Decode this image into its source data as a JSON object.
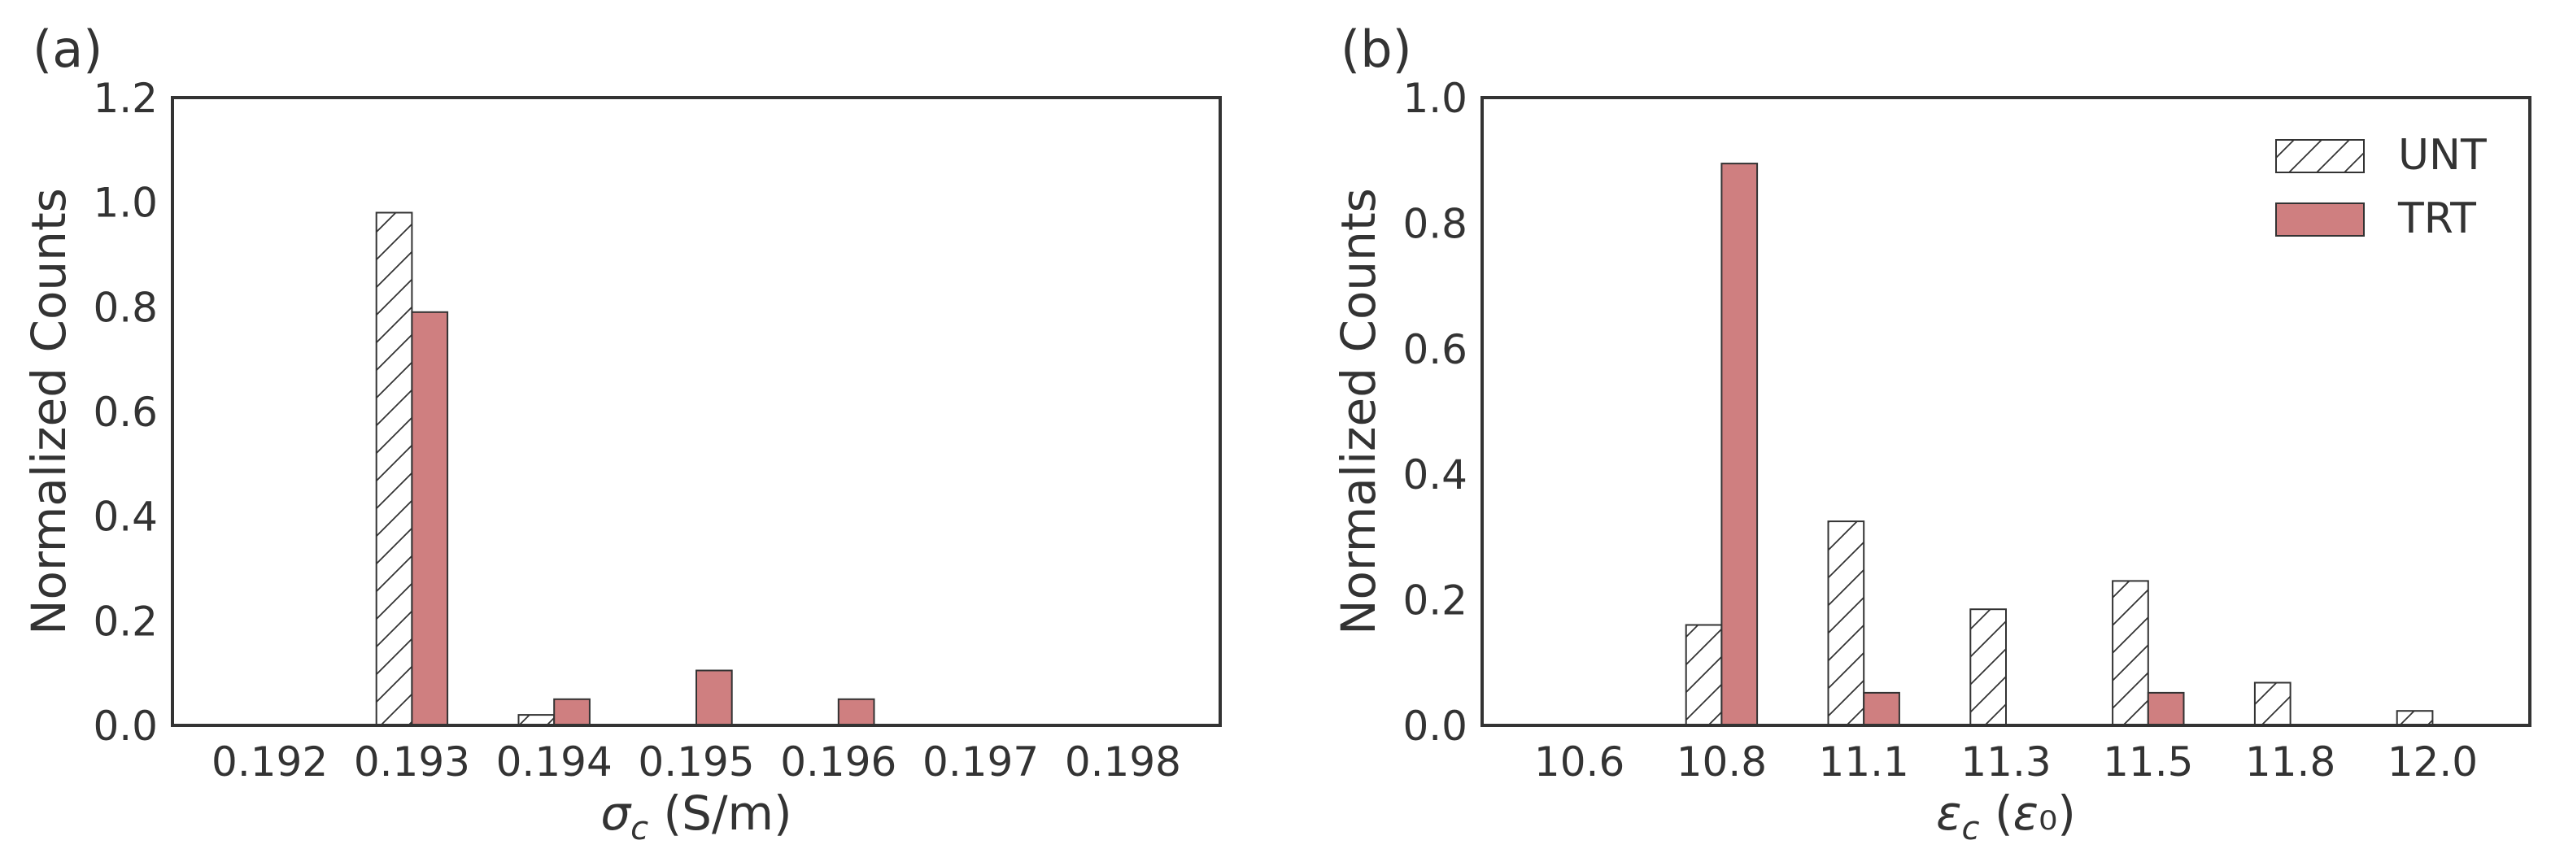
{
  "chart_data": [
    {
      "type": "bar",
      "panel_label": "(a)",
      "xlabel": "σ_c (S/m)",
      "ylabel": "Normalized Counts",
      "categories": [
        "0.192",
        "0.193",
        "0.194",
        "0.195",
        "0.196",
        "0.197",
        "0.198"
      ],
      "series": [
        {
          "name": "UNT",
          "values": [
            0,
            0.98,
            0.02,
            0,
            0,
            0,
            0
          ]
        },
        {
          "name": "TRT",
          "values": [
            0,
            0.79,
            0.05,
            0.105,
            0.05,
            0,
            0
          ]
        }
      ],
      "ylim": [
        0,
        1.2
      ],
      "yticks": [
        "0.0",
        "0.2",
        "0.4",
        "0.6",
        "0.8",
        "1.0",
        "1.2"
      ],
      "grid": false,
      "legend": "none"
    },
    {
      "type": "bar",
      "panel_label": "(b)",
      "xlabel": "ε_c (ε₀)",
      "ylabel": "Normalized Counts",
      "categories": [
        "10.6",
        "10.8",
        "11.1",
        "11.3",
        "11.5",
        "11.8",
        "12.0"
      ],
      "series": [
        {
          "name": "UNT",
          "values": [
            0,
            0.16,
            0.325,
            0.185,
            0.23,
            0.068,
            0.023
          ]
        },
        {
          "name": "TRT",
          "values": [
            0,
            0.895,
            0.052,
            0,
            0.052,
            0,
            0
          ]
        }
      ],
      "ylim": [
        0,
        1.0
      ],
      "yticks": [
        "0.0",
        "0.2",
        "0.4",
        "0.6",
        "0.8",
        "1.0"
      ],
      "grid": false,
      "legend": "top-right"
    }
  ],
  "colors": {
    "UNT": "#ffffff",
    "TRT": "#cf7f80",
    "edge": "#333333"
  }
}
